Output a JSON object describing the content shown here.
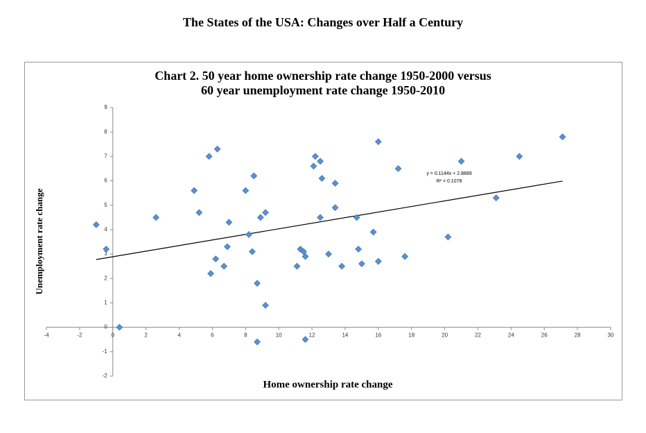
{
  "header": {
    "title": "The States of the USA: Changes over Half a Century"
  },
  "chart_data": {
    "type": "scatter",
    "title": [
      "Chart 2. 50 year home ownership rate change 1950-2000 versus",
      "60 year unemployment rate change 1950-2010"
    ],
    "x_label": "Home ownership rate change",
    "y_label": "Unemployment rate change",
    "color": "#5b8fd0",
    "x": [
      -1.0,
      -0.4,
      0.4,
      2.6,
      4.9,
      5.2,
      5.8,
      6.3,
      5.9,
      6.2,
      6.7,
      6.9,
      7.0,
      8.0,
      8.2,
      8.4,
      8.5,
      8.9,
      9.2,
      8.7,
      8.7,
      9.2,
      11.1,
      11.3,
      11.5,
      11.6,
      11.6,
      12.2,
      12.1,
      12.5,
      12.6,
      12.5,
      13.0,
      13.4,
      13.4,
      13.8,
      14.7,
      14.8,
      15.0,
      15.7,
      16.0,
      16.0,
      17.2,
      17.6,
      20.2,
      21.0,
      23.1,
      24.5,
      27.1
    ],
    "values": [
      4.2,
      3.2,
      0,
      4.5,
      5.6,
      4.7,
      7.0,
      7.3,
      2.2,
      2.8,
      2.5,
      3.3,
      4.3,
      5.6,
      3.8,
      3.1,
      6.2,
      4.5,
      4.7,
      1.8,
      -0.6,
      0.9,
      2.5,
      3.2,
      3.1,
      2.9,
      -0.5,
      7.0,
      6.6,
      6.8,
      6.1,
      4.5,
      3.0,
      5.9,
      4.9,
      2.5,
      4.5,
      3.2,
      2.6,
      3.9,
      2.7,
      7.6,
      6.5,
      2.9,
      3.7,
      6.8,
      5.3,
      7.0,
      7.8
    ],
    "xlim": [
      -4,
      30
    ],
    "ylim": [
      -2,
      9
    ],
    "xticks": [
      -4,
      -2,
      0,
      2,
      4,
      6,
      8,
      10,
      12,
      14,
      16,
      18,
      20,
      22,
      24,
      26,
      28,
      30
    ],
    "yticks": [
      -2,
      -1,
      0,
      1,
      2,
      3,
      4,
      5,
      6,
      7,
      8,
      9
    ],
    "trendline": {
      "label": "y = 0.1144x + 2.8889",
      "r2_label": "R² = 0.1078",
      "slope": 0.1144,
      "intercept": 2.8889,
      "color": "#000000"
    }
  }
}
